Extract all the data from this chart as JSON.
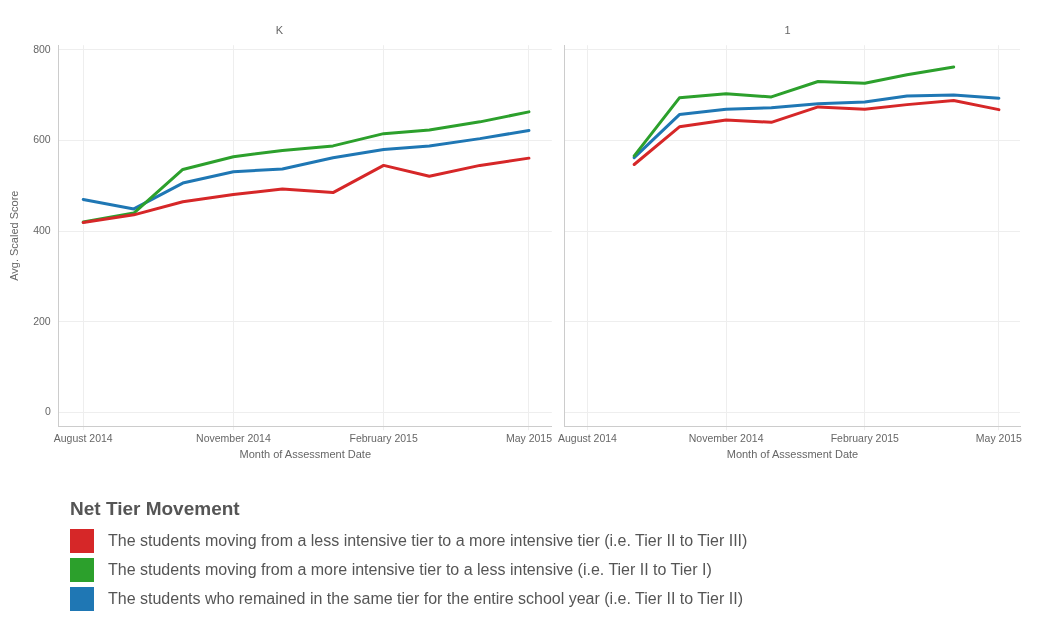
{
  "chart_data": [
    {
      "type": "line",
      "title": "K",
      "xlabel": "Month of Assessment Date",
      "ylabel": "Avg. Scaled Score",
      "legend_title": "Net Tier Movement",
      "legend": "bottom",
      "grid": true,
      "marker": "none",
      "x": [
        "2014-08",
        "2014-09",
        "2014-10",
        "2014-11",
        "2014-12",
        "2015-01",
        "2015-02",
        "2015-03",
        "2015-04",
        "2015-05"
      ],
      "xlim": [
        "2014-07-17",
        "2015-05-15"
      ],
      "xticks": [
        {
          "value": "2014-08",
          "label": "August 2014"
        },
        {
          "value": "2014-11",
          "label": "November 2014"
        },
        {
          "value": "2015-02",
          "label": "February 2015"
        },
        {
          "value": "2015-05",
          "label": "May 2015"
        }
      ],
      "ylim": [
        -30,
        810
      ],
      "yticks": [
        0,
        200,
        400,
        600,
        800
      ],
      "series": [
        {
          "name": "The students moving from a less intensive tier to a more intensive tier (i.e. Tier II to Tier III)",
          "color": "#d62728",
          "values": [
            419,
            436,
            465,
            481,
            493,
            485,
            545,
            521,
            545,
            561
          ]
        },
        {
          "name": "The students moving from a more intensive tier to a less intensive (i.e. Tier II to Tier I)",
          "color": "#2ca02c",
          "values": [
            420,
            440,
            536,
            564,
            578,
            588,
            615,
            623,
            641,
            663
          ]
        },
        {
          "name": "The students who remained in the same tier for the entire school year (i.e. Tier II to Tier II)",
          "color": "#1f77b4",
          "values": [
            470,
            449,
            506,
            531,
            537,
            562,
            580,
            588,
            604,
            622
          ]
        }
      ]
    },
    {
      "type": "line",
      "title": "1",
      "xlabel": "Month of Assessment Date",
      "grid": true,
      "marker": "none",
      "tick_labels": "x",
      "x": [
        "2014-09",
        "2014-10",
        "2014-11",
        "2014-12",
        "2015-01",
        "2015-02",
        "2015-03",
        "2015-04",
        "2015-05"
      ],
      "xlim": [
        "2014-07-17",
        "2015-05-15"
      ],
      "xticks": [
        {
          "value": "2014-08",
          "label": "August 2014"
        },
        {
          "value": "2014-11",
          "label": "November 2014"
        },
        {
          "value": "2015-02",
          "label": "February 2015"
        },
        {
          "value": "2015-05",
          "label": "May 2015"
        }
      ],
      "ylim": [
        -30,
        810
      ],
      "yticks": [
        0,
        200,
        400,
        600,
        800
      ],
      "series": [
        {
          "color": "#d62728",
          "values": [
            547,
            630,
            645,
            640,
            674,
            669,
            679,
            688,
            668
          ]
        },
        {
          "color": "#2ca02c",
          "values": [
            566,
            694,
            703,
            696,
            730,
            726,
            745,
            762,
            null
          ]
        },
        {
          "color": "#1f77b4",
          "values": [
            562,
            657,
            669,
            672,
            681,
            685,
            698,
            700,
            693
          ]
        }
      ]
    }
  ]
}
